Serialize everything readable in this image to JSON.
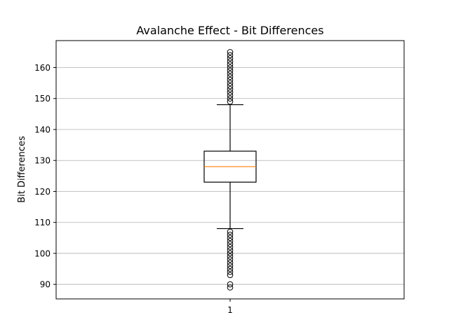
{
  "chart_data": {
    "type": "box",
    "title": "Avalanche Effect - Bit Differences",
    "xlabel": "",
    "ylabel": "Bit Differences",
    "categories": [
      "1"
    ],
    "ylim": [
      85.3,
      168.7
    ],
    "yticks": [
      90,
      100,
      110,
      120,
      130,
      140,
      150,
      160
    ],
    "grid": "horizontal",
    "legend": "none",
    "boxes": [
      {
        "category": "1",
        "whisker_low": 108,
        "q1": 123,
        "median": 128,
        "q3": 133,
        "whisker_high": 148,
        "outliers": [
          89,
          90,
          93,
          94,
          95,
          96,
          97,
          98,
          99,
          100,
          101,
          102,
          103,
          104,
          105,
          106,
          107,
          149,
          150,
          151,
          152,
          153,
          154,
          155,
          156,
          157,
          158,
          159,
          160,
          161,
          162,
          163,
          164,
          165
        ]
      }
    ],
    "colors": {
      "box": "#000000",
      "median": "#ff7f0e",
      "grid": "#b0b0b0",
      "axes": "#000000"
    }
  }
}
